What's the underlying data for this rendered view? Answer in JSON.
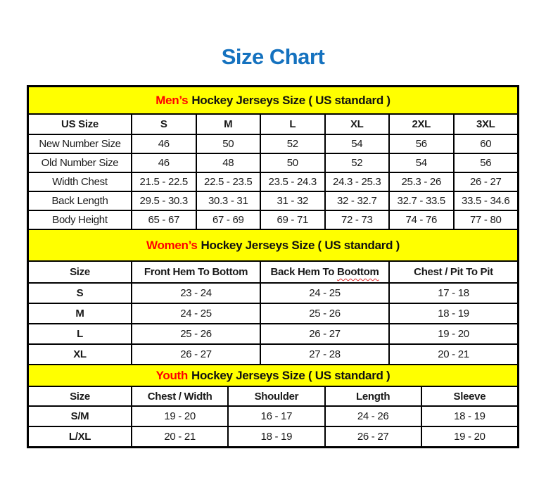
{
  "page": {
    "title": "Size Chart"
  },
  "colors": {
    "title_blue": "#1572bf",
    "band_yellow": "#ffff00",
    "accent_red": "#ff0000",
    "border_black": "#000000"
  },
  "mens": {
    "band_accent": "Men’s",
    "band_rest": "Hockey Jerseys Size ( US standard )",
    "columns": [
      "US Size",
      "S",
      "M",
      "L",
      "XL",
      "2XL",
      "3XL"
    ],
    "rows": [
      {
        "label": "New Number Size",
        "values": [
          "46",
          "50",
          "52",
          "54",
          "56",
          "60"
        ]
      },
      {
        "label": "Old Number Size",
        "values": [
          "46",
          "48",
          "50",
          "52",
          "54",
          "56"
        ]
      },
      {
        "label": "Width Chest",
        "values": [
          "21.5 - 22.5",
          "22.5 - 23.5",
          "23.5 - 24.3",
          "24.3 - 25.3",
          "25.3 - 26",
          "26 - 27"
        ]
      },
      {
        "label": "Back Length",
        "values": [
          "29.5 - 30.3",
          "30.3 - 31",
          "31 - 32",
          "32 - 32.7",
          "32.7 - 33.5",
          "33.5 - 34.6"
        ]
      },
      {
        "label": "Body Height",
        "values": [
          "65 - 67",
          "67 - 69",
          "69 - 71",
          "72 - 73",
          "74 - 76",
          "77 - 80"
        ]
      }
    ]
  },
  "womens": {
    "band_accent": "Women’s",
    "band_rest": "Hockey Jerseys Size ( US standard )",
    "columns": {
      "c0": "Size",
      "c1": "Front Hem To Bottom",
      "c2_pre": "Back Hem To",
      "c2_misspelled_word": "Boottom",
      "c3": "Chest / Pit To Pit"
    },
    "rows": [
      {
        "label": "S",
        "values": [
          "23 - 24",
          "24 - 25",
          "17 - 18"
        ]
      },
      {
        "label": "M",
        "values": [
          "24 - 25",
          "25 - 26",
          "18 - 19"
        ]
      },
      {
        "label": "L",
        "values": [
          "25 - 26",
          "26 - 27",
          "19 - 20"
        ]
      },
      {
        "label": "XL",
        "values": [
          "26 - 27",
          "27 - 28",
          "20 - 21"
        ]
      }
    ]
  },
  "youth": {
    "band_accent": "Youth",
    "band_rest": "Hockey Jerseys Size ( US standard )",
    "columns": [
      "Size",
      "Chest / Width",
      "Shoulder",
      "Length",
      "Sleeve"
    ],
    "rows": [
      {
        "label": "S/M",
        "values": [
          "19 - 20",
          "16 - 17",
          "24 - 26",
          "18 - 19"
        ]
      },
      {
        "label": "L/XL",
        "values": [
          "20 - 21",
          "18 - 19",
          "26 - 27",
          "19 - 20"
        ]
      }
    ]
  }
}
